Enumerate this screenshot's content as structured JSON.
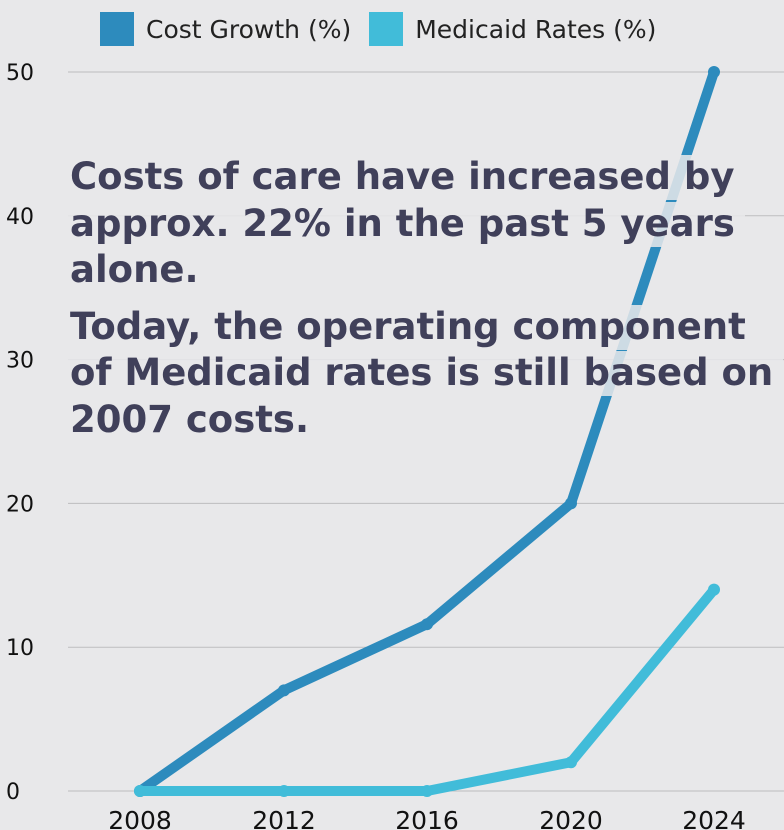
{
  "legend": {
    "items": [
      {
        "label": "Cost Growth (%)",
        "color": "#2d8bbd"
      },
      {
        "label": "Medicaid Rates (%)",
        "color": "#41bcd9"
      }
    ]
  },
  "overlay": {
    "paragraphs": [
      "Costs of care have increased by approx. 22% in the past 5 years alone.",
      "Today, the operating component of Medicaid rates is still based on 2007 costs."
    ]
  },
  "chart_data": {
    "type": "line",
    "title": "",
    "xlabel": "",
    "ylabel": "",
    "categories": [
      "2008",
      "2012",
      "2016",
      "2020",
      "2024"
    ],
    "x": [
      2008,
      2012,
      2016,
      2020,
      2024
    ],
    "ylim": [
      0,
      50
    ],
    "yticks": [
      0,
      10,
      20,
      30,
      40,
      50
    ],
    "series": [
      {
        "name": "Cost Growth (%)",
        "color": "#2d8bbd",
        "values": [
          0,
          7,
          11.6,
          20,
          50
        ]
      },
      {
        "name": "Medicaid Rates (%)",
        "color": "#41bcd9",
        "values": [
          0,
          0,
          0,
          2,
          14
        ]
      }
    ],
    "grid": true,
    "legend_position": "top"
  }
}
